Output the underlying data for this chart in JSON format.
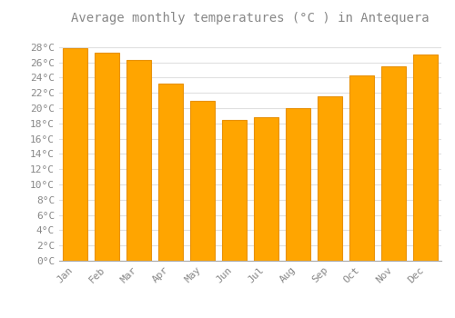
{
  "title": "Average monthly temperatures (°C ) in Antequera",
  "months": [
    "Jan",
    "Feb",
    "Mar",
    "Apr",
    "May",
    "Jun",
    "Jul",
    "Aug",
    "Sep",
    "Oct",
    "Nov",
    "Dec"
  ],
  "values": [
    27.8,
    27.3,
    26.3,
    23.2,
    21.0,
    18.5,
    18.8,
    20.0,
    21.5,
    24.3,
    25.5,
    27.0
  ],
  "bar_color": "#FFA500",
  "bar_edge_color": "#E8920A",
  "background_color": "#FFFFFF",
  "plot_bg_color": "#FFFFFF",
  "grid_color": "#E0E0E0",
  "text_color": "#888888",
  "ylim": [
    0,
    30
  ],
  "yticks": [
    0,
    2,
    4,
    6,
    8,
    10,
    12,
    14,
    16,
    18,
    20,
    22,
    24,
    26,
    28
  ],
  "title_fontsize": 10,
  "tick_fontsize": 8,
  "bar_width": 0.75
}
